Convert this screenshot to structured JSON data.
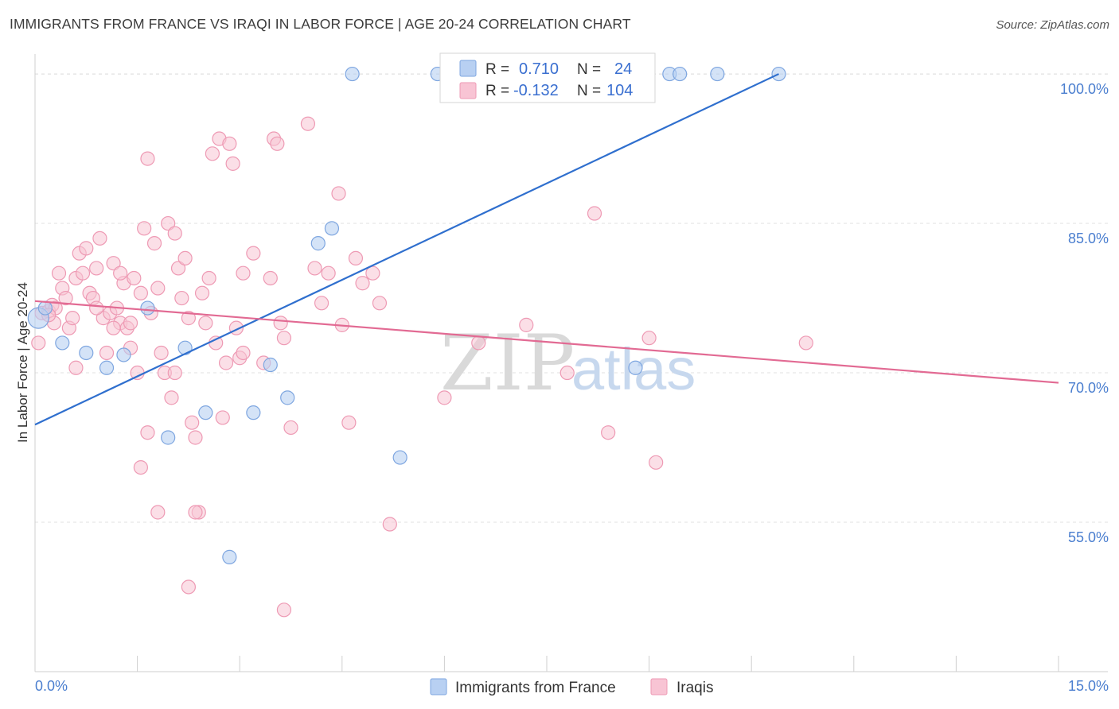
{
  "title": "IMMIGRANTS FROM FRANCE VS IRAQI IN LABOR FORCE | AGE 20-24 CORRELATION CHART",
  "source": "Source: ZipAtlas.com",
  "watermark": {
    "zip": "ZIP",
    "atlas": "atlas"
  },
  "colors": {
    "france_fill": "#b8d0f2",
    "france_stroke": "#7ea6e0",
    "france_line": "#2f6fce",
    "iraqi_fill": "#f8c4d4",
    "iraqi_stroke": "#ee9ab4",
    "iraqi_line": "#e26a93",
    "grid": "#e0e0e0",
    "tick_text": "#4a7ecf"
  },
  "legend": {
    "rows": [
      {
        "r_label": "R =",
        "r_value": "0.710",
        "n_label": "N =",
        "n_value": "24"
      },
      {
        "r_label": "R =",
        "r_value": "-0.132",
        "n_label": "N =",
        "n_value": "104"
      }
    ]
  },
  "bottom_legend": [
    "Immigrants from France",
    "Iraqis"
  ],
  "chart_data": {
    "type": "scatter",
    "title": "IMMIGRANTS FROM FRANCE VS IRAQI IN LABOR FORCE | AGE 20-24 CORRELATION CHART",
    "xlabel": "",
    "ylabel": "In Labor Force | Age 20-24",
    "xlim": [
      0,
      15
    ],
    "ylim": [
      40,
      102
    ],
    "x_tick_labels": [
      "0.0%",
      "15.0%"
    ],
    "y_ticks": [
      55,
      70,
      85,
      100
    ],
    "y_tick_labels": [
      "55.0%",
      "70.0%",
      "85.0%",
      "100.0%"
    ],
    "grid": true,
    "legend_placement": "top-center",
    "series": [
      {
        "name": "Immigrants from France",
        "points": [
          [
            0.05,
            75.5
          ],
          [
            0.15,
            76.5
          ],
          [
            0.4,
            73.0
          ],
          [
            0.75,
            72.0
          ],
          [
            1.05,
            70.5
          ],
          [
            1.3,
            71.8
          ],
          [
            1.65,
            76.5
          ],
          [
            1.95,
            63.5
          ],
          [
            2.2,
            72.5
          ],
          [
            2.5,
            66.0
          ],
          [
            2.85,
            51.5
          ],
          [
            3.2,
            66.0
          ],
          [
            3.45,
            70.8
          ],
          [
            3.7,
            67.5
          ],
          [
            4.15,
            83.0
          ],
          [
            4.35,
            84.5
          ],
          [
            4.65,
            100.0
          ],
          [
            5.35,
            61.5
          ],
          [
            5.9,
            100.0
          ],
          [
            8.8,
            70.5
          ],
          [
            9.3,
            100.0
          ],
          [
            9.45,
            100.0
          ],
          [
            10.0,
            100.0
          ],
          [
            10.9,
            100.0
          ]
        ],
        "trend": {
          "x": [
            0,
            10.9
          ],
          "y": [
            64.8,
            100.0
          ]
        }
      },
      {
        "name": "Iraqis",
        "points": [
          [
            0.05,
            73.0
          ],
          [
            0.1,
            76.0
          ],
          [
            0.2,
            76.2
          ],
          [
            0.25,
            76.8
          ],
          [
            0.28,
            75.0
          ],
          [
            0.3,
            76.5
          ],
          [
            0.35,
            80.0
          ],
          [
            0.4,
            78.5
          ],
          [
            0.45,
            77.5
          ],
          [
            0.5,
            74.5
          ],
          [
            0.55,
            75.5
          ],
          [
            0.6,
            79.5
          ],
          [
            0.65,
            82.0
          ],
          [
            0.7,
            80.0
          ],
          [
            0.75,
            82.5
          ],
          [
            0.8,
            78.0
          ],
          [
            0.85,
            77.5
          ],
          [
            0.9,
            80.5
          ],
          [
            0.95,
            83.5
          ],
          [
            1.0,
            75.5
          ],
          [
            1.05,
            72.0
          ],
          [
            1.1,
            76.0
          ],
          [
            1.15,
            81.0
          ],
          [
            1.2,
            76.5
          ],
          [
            1.25,
            75.0
          ],
          [
            1.3,
            79.0
          ],
          [
            1.35,
            74.5
          ],
          [
            1.4,
            75.0
          ],
          [
            1.45,
            79.5
          ],
          [
            1.5,
            70.0
          ],
          [
            1.55,
            78.0
          ],
          [
            1.6,
            84.5
          ],
          [
            1.65,
            91.5
          ],
          [
            1.7,
            76.0
          ],
          [
            1.75,
            83.0
          ],
          [
            1.8,
            78.5
          ],
          [
            1.85,
            72.0
          ],
          [
            1.9,
            70.0
          ],
          [
            1.95,
            85.0
          ],
          [
            2.0,
            67.5
          ],
          [
            2.05,
            84.0
          ],
          [
            2.1,
            80.5
          ],
          [
            2.15,
            77.5
          ],
          [
            2.2,
            81.5
          ],
          [
            2.25,
            75.5
          ],
          [
            2.3,
            65.0
          ],
          [
            2.35,
            63.5
          ],
          [
            2.4,
            56.0
          ],
          [
            2.45,
            78.0
          ],
          [
            2.5,
            75.0
          ],
          [
            2.55,
            79.5
          ],
          [
            2.6,
            92.0
          ],
          [
            2.65,
            73.0
          ],
          [
            2.7,
            93.5
          ],
          [
            2.75,
            65.5
          ],
          [
            2.8,
            71.0
          ],
          [
            2.85,
            93.0
          ],
          [
            2.9,
            91.0
          ],
          [
            2.95,
            74.5
          ],
          [
            3.0,
            71.5
          ],
          [
            3.05,
            80.0
          ],
          [
            3.2,
            82.0
          ],
          [
            3.35,
            71.0
          ],
          [
            3.45,
            79.5
          ],
          [
            3.5,
            93.5
          ],
          [
            3.55,
            93.0
          ],
          [
            3.6,
            75.0
          ],
          [
            3.65,
            73.5
          ],
          [
            3.75,
            64.5
          ],
          [
            4.0,
            95.0
          ],
          [
            4.2,
            77.0
          ],
          [
            4.3,
            80.0
          ],
          [
            4.45,
            88.0
          ],
          [
            4.5,
            74.8
          ],
          [
            4.6,
            65.0
          ],
          [
            4.7,
            81.5
          ],
          [
            4.8,
            79.0
          ],
          [
            4.95,
            80.0
          ],
          [
            5.05,
            77.0
          ],
          [
            5.2,
            54.8
          ],
          [
            6.0,
            67.5
          ],
          [
            6.5,
            73.0
          ],
          [
            7.2,
            74.8
          ],
          [
            7.8,
            70.0
          ],
          [
            8.2,
            86.0
          ],
          [
            8.4,
            64.0
          ],
          [
            9.0,
            73.5
          ],
          [
            9.1,
            61.0
          ],
          [
            11.3,
            73.0
          ],
          [
            1.55,
            60.5
          ],
          [
            1.65,
            64.0
          ],
          [
            1.8,
            56.0
          ],
          [
            2.25,
            48.5
          ],
          [
            2.35,
            56.0
          ],
          [
            3.65,
            46.2
          ],
          [
            0.6,
            70.5
          ],
          [
            1.15,
            74.5
          ],
          [
            0.9,
            76.5
          ],
          [
            1.4,
            72.5
          ],
          [
            0.2,
            75.8
          ],
          [
            3.05,
            72.0
          ],
          [
            2.05,
            70.0
          ],
          [
            4.1,
            80.5
          ],
          [
            1.25,
            80.0
          ]
        ],
        "trend": {
          "x": [
            0,
            15
          ],
          "y": [
            77.2,
            69.0
          ]
        }
      }
    ]
  }
}
